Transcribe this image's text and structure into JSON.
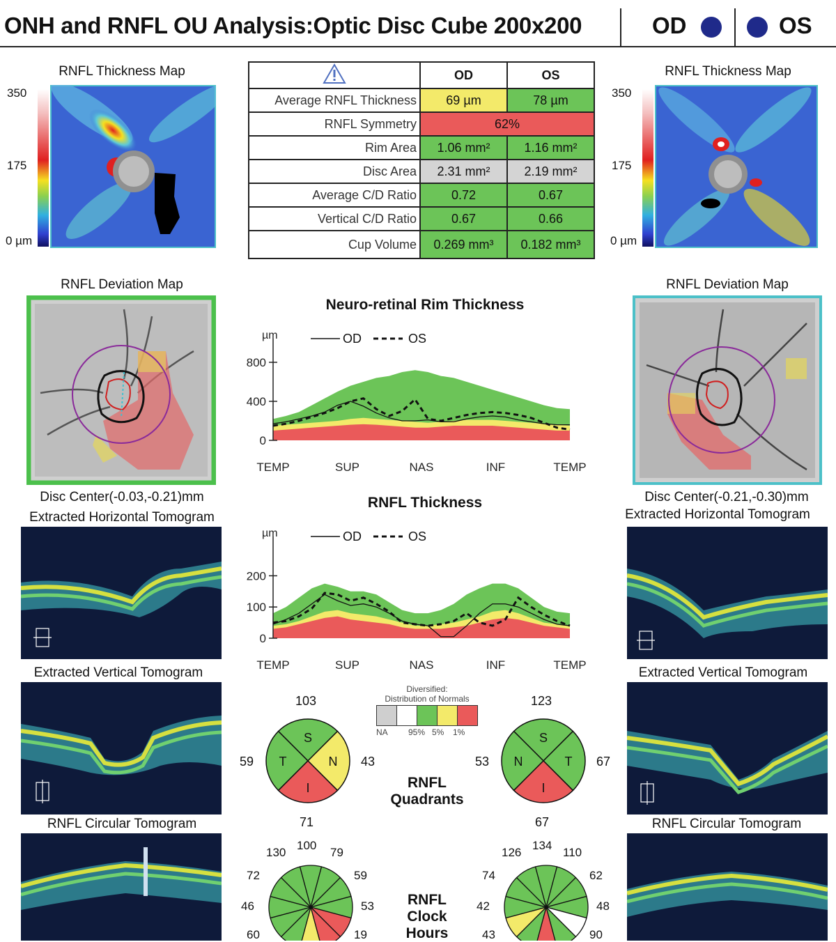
{
  "header": {
    "title": "ONH and RNFL OU Analysis:Optic Disc Cube 200x200",
    "od_label": "OD",
    "os_label": "OS"
  },
  "thickness_map": {
    "label": "RNFL Thickness Map",
    "scale_max": "350",
    "scale_mid": "175",
    "scale_min": "0 µm"
  },
  "deviation_map": {
    "label": "RNFL Deviation Map"
  },
  "od": {
    "disc_center": "Disc Center(-0.03,-0.21)mm"
  },
  "os": {
    "disc_center": "Disc Center(-0.21,-0.30)mm"
  },
  "tomograms": {
    "horizontal": "Extracted Horizontal Tomogram",
    "vertical": "Extracted Vertical Tomogram",
    "circular": "RNFL Circular Tomogram"
  },
  "params_table": {
    "head_od": "OD",
    "head_os": "OS",
    "rows": [
      {
        "name": "Average RNFL Thickness",
        "od": "69 µm",
        "os": "78 µm"
      },
      {
        "name": "RNFL Symmetry",
        "both": "62%"
      },
      {
        "name": "Rim Area",
        "od": "1.06 mm²",
        "os": "1.16 mm²"
      },
      {
        "name": "Disc Area",
        "od": "2.31 mm²",
        "os": "2.19 mm²"
      },
      {
        "name": "Average C/D Ratio",
        "od": "0.72",
        "os": "0.67"
      },
      {
        "name": "Vertical C/D Ratio",
        "od": "0.67",
        "os": "0.66"
      },
      {
        "name": "Cup Volume",
        "od": "0.269 mm³",
        "os": "0.182 mm³"
      }
    ],
    "colors": {
      "yellow": "#f3ea6a",
      "green": "#6cc458",
      "red": "#ea5a5a",
      "gray": "#d4d4d4"
    }
  },
  "chart_data": [
    {
      "type": "line",
      "title": "Neuro-retinal Rim Thickness",
      "ylabel": "µm",
      "ylim": [
        0,
        800
      ],
      "yticks": [
        "800",
        "400",
        "0"
      ],
      "xticks": [
        "TEMP",
        "SUP",
        "NAS",
        "INF",
        "TEMP"
      ],
      "legend": {
        "od": "OD",
        "os": "OS"
      },
      "series": [
        {
          "name": "OD",
          "style": "solid",
          "values": [
            170,
            190,
            220,
            250,
            290,
            360,
            400,
            350,
            280,
            230,
            200,
            200,
            210,
            190,
            190,
            220,
            240,
            250,
            240,
            210,
            190,
            170,
            160,
            160
          ]
        },
        {
          "name": "OS",
          "style": "dotted",
          "values": [
            150,
            170,
            200,
            240,
            280,
            330,
            400,
            430,
            320,
            250,
            300,
            420,
            220,
            200,
            230,
            260,
            280,
            290,
            280,
            260,
            230,
            180,
            130,
            110
          ]
        }
      ],
      "normal_bands": {
        "p1": [
          100,
          110,
          120,
          130,
          140,
          150,
          160,
          165,
          160,
          150,
          140,
          130,
          130,
          140,
          150,
          150,
          150,
          150,
          140,
          130,
          120,
          110,
          100,
          100
        ],
        "p5": [
          150,
          160,
          170,
          180,
          190,
          200,
          220,
          230,
          220,
          210,
          200,
          190,
          180,
          190,
          200,
          210,
          210,
          210,
          200,
          190,
          180,
          170,
          160,
          150
        ],
        "p95": [
          220,
          250,
          290,
          360,
          430,
          500,
          560,
          600,
          640,
          660,
          700,
          720,
          700,
          660,
          640,
          600,
          560,
          520,
          480,
          440,
          400,
          360,
          330,
          320
        ]
      }
    },
    {
      "type": "line",
      "title": "RNFL Thickness",
      "ylabel": "µm",
      "ylim": [
        0,
        250
      ],
      "yticks": [
        "200",
        "100",
        "0"
      ],
      "xticks": [
        "TEMP",
        "SUP",
        "NAS",
        "INF",
        "TEMP"
      ],
      "legend": {
        "od": "OD",
        "os": "OS"
      },
      "series": [
        {
          "name": "OD",
          "style": "solid",
          "values": [
            45,
            60,
            80,
            110,
            140,
            120,
            105,
            110,
            100,
            80,
            55,
            45,
            40,
            5,
            5,
            40,
            80,
            110,
            110,
            100,
            80,
            60,
            45,
            40
          ]
        },
        {
          "name": "OS",
          "style": "dotted",
          "values": [
            50,
            55,
            70,
            95,
            145,
            140,
            120,
            130,
            110,
            85,
            50,
            45,
            40,
            45,
            55,
            80,
            50,
            40,
            60,
            130,
            100,
            75,
            55,
            40
          ]
        }
      ],
      "normal_bands": {
        "p1": [
          30,
          35,
          45,
          55,
          65,
          70,
          60,
          55,
          50,
          45,
          35,
          30,
          30,
          30,
          35,
          40,
          50,
          60,
          65,
          60,
          50,
          40,
          35,
          30
        ],
        "p5": [
          40,
          45,
          55,
          70,
          85,
          90,
          80,
          75,
          70,
          60,
          50,
          40,
          40,
          45,
          50,
          60,
          70,
          85,
          90,
          80,
          65,
          50,
          45,
          40
        ],
        "p95": [
          80,
          100,
          130,
          160,
          175,
          165,
          150,
          150,
          140,
          115,
          90,
          80,
          80,
          90,
          110,
          140,
          160,
          175,
          175,
          160,
          130,
          100,
          85,
          80
        ]
      }
    }
  ],
  "legend_box": {
    "title1": "Diversified:",
    "title2": "Distribution of Normals",
    "na": "NA",
    "p95": "95%",
    "p5": "5%",
    "p1": "1%"
  },
  "quadrants": {
    "title1": "RNFL",
    "title2": "Quadrants",
    "od": {
      "top": "103",
      "left": "59",
      "right": "43",
      "bottom": "71",
      "letters": [
        "S",
        "T",
        "N",
        "I"
      ],
      "colors": [
        "#6cc458",
        "#6cc458",
        "#f3ea6a",
        "#ea5a5a"
      ]
    },
    "os": {
      "top": "123",
      "left": "53",
      "right": "67",
      "bottom": "67",
      "letters": [
        "S",
        "N",
        "T",
        "I"
      ],
      "colors": [
        "#6cc458",
        "#6cc458",
        "#6cc458",
        "#ea5a5a"
      ]
    }
  },
  "clock_hours": {
    "title1": "RNFL",
    "title2": "Clock",
    "title3": "Hours",
    "od": {
      "values": [
        "130",
        "100",
        "79",
        "72",
        "59",
        "46",
        "53",
        "60",
        "19"
      ]
    },
    "os": {
      "values": [
        "126",
        "134",
        "110",
        "74",
        "62",
        "42",
        "48",
        "43",
        "90"
      ]
    }
  }
}
